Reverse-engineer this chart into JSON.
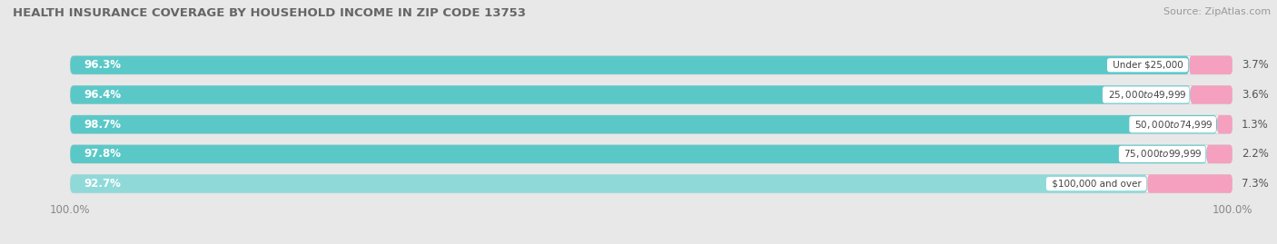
{
  "title": "HEALTH INSURANCE COVERAGE BY HOUSEHOLD INCOME IN ZIP CODE 13753",
  "source": "Source: ZipAtlas.com",
  "categories": [
    "Under $25,000",
    "$25,000 to $49,999",
    "$50,000 to $74,999",
    "$75,000 to $99,999",
    "$100,000 and over"
  ],
  "with_coverage": [
    96.3,
    96.4,
    98.7,
    97.8,
    92.7
  ],
  "without_coverage": [
    3.7,
    3.6,
    1.3,
    2.2,
    7.3
  ],
  "color_with": "#5BC8C8",
  "color_without": "#F4A0BE",
  "color_last_with": "#90D9D9",
  "bg_color": "#e8e8e8",
  "bar_bg_color": "#f5f5f5",
  "title_fontsize": 9.5,
  "label_fontsize": 8.5,
  "tick_fontsize": 8.5,
  "legend_fontsize": 9,
  "source_fontsize": 8
}
